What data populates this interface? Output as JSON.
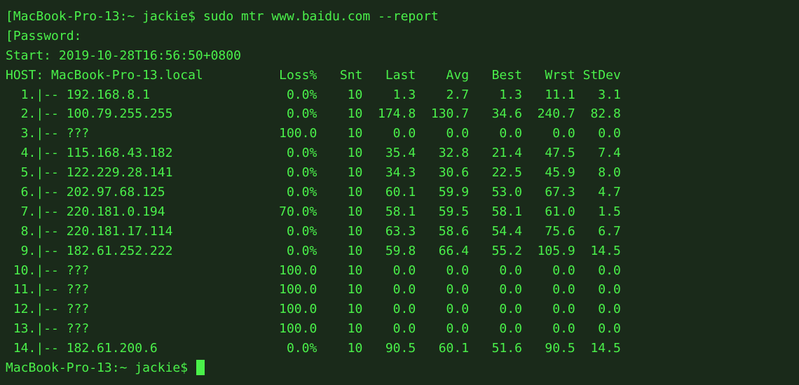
{
  "terminal": {
    "background_color": "#1a2a1a",
    "text_color": "#4af04a",
    "font_family": "Menlo, Monaco, Consolas, monospace",
    "font_size": 18,
    "prompt_host": "MacBook-Pro-13",
    "prompt_path": "~",
    "prompt_user": "jackie",
    "prompt_symbol": "$",
    "command": "sudo mtr www.baidu.com --report",
    "password_label": "Password:",
    "start_line": "Start: 2019-10-28T16:56:50+0800",
    "host_label": "HOST:",
    "host_value": "MacBook-Pro-13.local",
    "columns": [
      "Loss%",
      "Snt",
      "Last",
      "Avg",
      "Best",
      "Wrst",
      "StDev"
    ],
    "col_widths": {
      "hop_num": 4,
      "host": 28,
      "loss": 7,
      "snt": 6,
      "last": 7,
      "avg": 7,
      "best": 7,
      "wrst": 7,
      "stdev": 7
    },
    "hops": [
      {
        "n": 1,
        "host": "192.168.8.1",
        "loss": "0.0%",
        "snt": "10",
        "last": "1.3",
        "avg": "2.7",
        "best": "1.3",
        "wrst": "11.1",
        "stdev": "3.1"
      },
      {
        "n": 2,
        "host": "100.79.255.255",
        "loss": "0.0%",
        "snt": "10",
        "last": "174.8",
        "avg": "130.7",
        "best": "34.6",
        "wrst": "240.7",
        "stdev": "82.8"
      },
      {
        "n": 3,
        "host": "???",
        "loss": "100.0",
        "snt": "10",
        "last": "0.0",
        "avg": "0.0",
        "best": "0.0",
        "wrst": "0.0",
        "stdev": "0.0"
      },
      {
        "n": 4,
        "host": "115.168.43.182",
        "loss": "0.0%",
        "snt": "10",
        "last": "35.4",
        "avg": "32.8",
        "best": "21.4",
        "wrst": "47.5",
        "stdev": "7.4"
      },
      {
        "n": 5,
        "host": "122.229.28.141",
        "loss": "0.0%",
        "snt": "10",
        "last": "34.3",
        "avg": "30.6",
        "best": "22.5",
        "wrst": "45.9",
        "stdev": "8.0"
      },
      {
        "n": 6,
        "host": "202.97.68.125",
        "loss": "0.0%",
        "snt": "10",
        "last": "60.1",
        "avg": "59.9",
        "best": "53.0",
        "wrst": "67.3",
        "stdev": "4.7"
      },
      {
        "n": 7,
        "host": "220.181.0.194",
        "loss": "70.0%",
        "snt": "10",
        "last": "58.1",
        "avg": "59.5",
        "best": "58.1",
        "wrst": "61.0",
        "stdev": "1.5"
      },
      {
        "n": 8,
        "host": "220.181.17.114",
        "loss": "0.0%",
        "snt": "10",
        "last": "63.3",
        "avg": "58.6",
        "best": "54.4",
        "wrst": "75.6",
        "stdev": "6.7"
      },
      {
        "n": 9,
        "host": "182.61.252.222",
        "loss": "0.0%",
        "snt": "10",
        "last": "59.8",
        "avg": "66.4",
        "best": "55.2",
        "wrst": "105.9",
        "stdev": "14.5"
      },
      {
        "n": 10,
        "host": "???",
        "loss": "100.0",
        "snt": "10",
        "last": "0.0",
        "avg": "0.0",
        "best": "0.0",
        "wrst": "0.0",
        "stdev": "0.0"
      },
      {
        "n": 11,
        "host": "???",
        "loss": "100.0",
        "snt": "10",
        "last": "0.0",
        "avg": "0.0",
        "best": "0.0",
        "wrst": "0.0",
        "stdev": "0.0"
      },
      {
        "n": 12,
        "host": "???",
        "loss": "100.0",
        "snt": "10",
        "last": "0.0",
        "avg": "0.0",
        "best": "0.0",
        "wrst": "0.0",
        "stdev": "0.0"
      },
      {
        "n": 13,
        "host": "???",
        "loss": "100.0",
        "snt": "10",
        "last": "0.0",
        "avg": "0.0",
        "best": "0.0",
        "wrst": "0.0",
        "stdev": "0.0"
      },
      {
        "n": 14,
        "host": "182.61.200.6",
        "loss": "0.0%",
        "snt": "10",
        "last": "90.5",
        "avg": "60.1",
        "best": "51.6",
        "wrst": "90.5",
        "stdev": "14.5"
      }
    ]
  }
}
